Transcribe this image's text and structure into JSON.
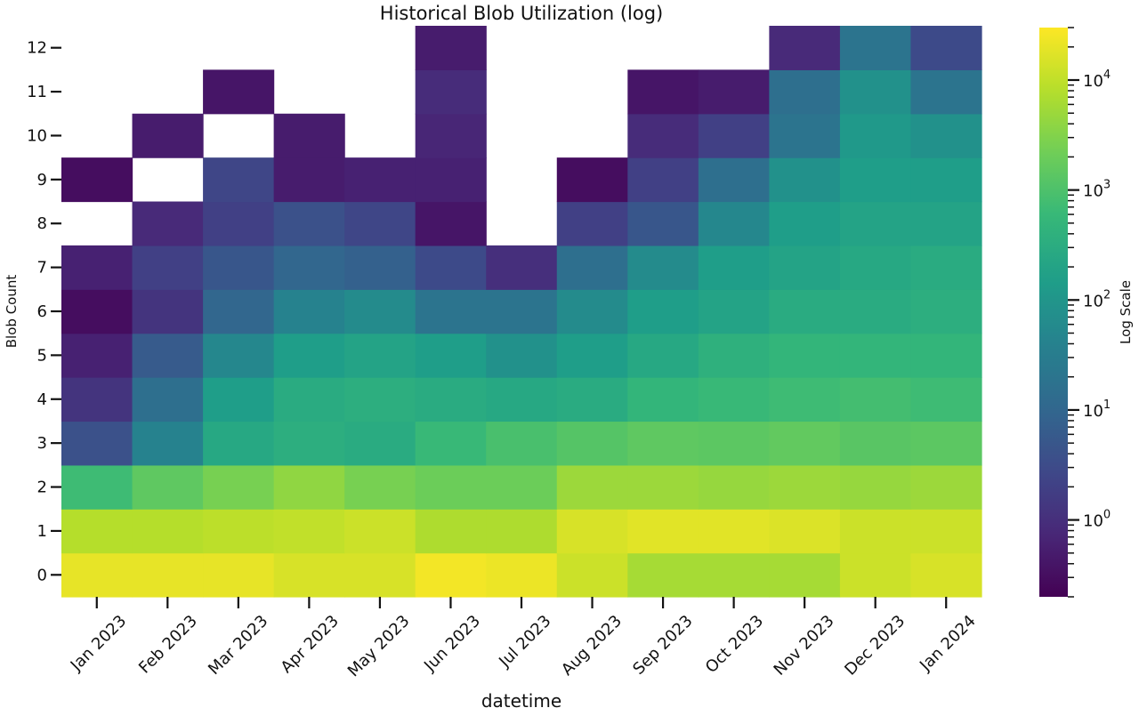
{
  "chart_data": {
    "type": "heatmap",
    "title": "Historical Blob Utilization (log)",
    "xlabel": "datetime",
    "ylabel": "Blob Count",
    "x_categories": [
      "Jan 2023",
      "Feb 2023",
      "Mar 2023",
      "Apr 2023",
      "May 2023",
      "Jun 2023",
      "Jul 2023",
      "Aug 2023",
      "Sep 2023",
      "Oct 2023",
      "Nov 2023",
      "Dec 2023",
      "Jan 2024"
    ],
    "y_categories": [
      "0",
      "1",
      "2",
      "3",
      "4",
      "5",
      "6",
      "7",
      "8",
      "9",
      "10",
      "11",
      "12"
    ],
    "value_scale": "log",
    "colormap": "viridis",
    "value_range": [
      0.2,
      30000
    ],
    "missing_value_display": "blank (white)",
    "values": [
      [
        20000,
        20000,
        20000,
        15000,
        15000,
        25000,
        22000,
        12000,
        6000,
        6000,
        6000,
        12000,
        15000
      ],
      [
        8000,
        8000,
        9000,
        10000,
        12000,
        7000,
        7000,
        15000,
        18000,
        18000,
        16000,
        12000,
        12000
      ],
      [
        700,
        1500,
        2500,
        4000,
        2500,
        2000,
        2000,
        5000,
        5000,
        4500,
        5000,
        4500,
        5000
      ],
      [
        4,
        40,
        250,
        350,
        300,
        600,
        900,
        1200,
        1500,
        1400,
        1600,
        1300,
        1400
      ],
      [
        1.2,
        15,
        150,
        300,
        350,
        300,
        250,
        300,
        500,
        600,
        700,
        800,
        700
      ],
      [
        0.6,
        6,
        50,
        150,
        200,
        150,
        80,
        150,
        250,
        400,
        500,
        500,
        500
      ],
      [
        0.3,
        1.2,
        10,
        40,
        60,
        20,
        20,
        60,
        150,
        200,
        300,
        300,
        350
      ],
      [
        0.6,
        2,
        5,
        10,
        8,
        3,
        1,
        15,
        60,
        150,
        200,
        250,
        300
      ],
      [
        null,
        0.8,
        2,
        4,
        2.5,
        0.4,
        null,
        2,
        5,
        50,
        150,
        200,
        200
      ],
      [
        0.3,
        null,
        2.5,
        0.5,
        0.6,
        0.6,
        null,
        0.3,
        2,
        15,
        80,
        150,
        150
      ],
      [
        null,
        0.5,
        null,
        0.5,
        null,
        0.7,
        null,
        null,
        0.9,
        2,
        20,
        120,
        80
      ],
      [
        null,
        null,
        0.4,
        null,
        null,
        0.9,
        null,
        null,
        0.4,
        0.5,
        15,
        80,
        20
      ],
      [
        null,
        null,
        null,
        null,
        null,
        0.5,
        null,
        null,
        null,
        null,
        0.8,
        20,
        3
      ]
    ],
    "colorbar": {
      "label": "Log Scale",
      "major_ticks": [
        1,
        10,
        100,
        1000,
        10000
      ],
      "major_tick_labels": [
        "10",
        "10",
        "10",
        "10",
        "10"
      ],
      "major_tick_exponents": [
        "0",
        "1",
        "2",
        "3",
        "4"
      ]
    },
    "grid": false,
    "legend": "colorbar-right"
  }
}
